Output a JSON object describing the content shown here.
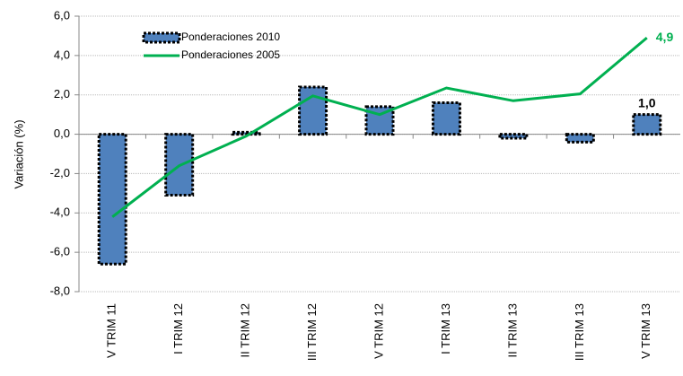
{
  "chart_data": {
    "type": "bar_line",
    "y_label": "Variación (%)",
    "categories": [
      "V TRIM 11",
      "I TRIM 12",
      "II TRIM 12",
      "III TRIM 12",
      "V TRIM 12",
      "I TRIM 13",
      "II TRIM 13",
      "III TRIM 13",
      "V TRIM 13"
    ],
    "series": [
      {
        "name": "Ponderaciones 2010",
        "type": "bar",
        "color": "#4f81bd",
        "values": [
          -6.6,
          -3.1,
          0.1,
          2.4,
          1.4,
          1.6,
          -0.2,
          -0.4,
          1.0
        ],
        "value_labels": [
          null,
          null,
          null,
          null,
          null,
          null,
          null,
          null,
          "1,0"
        ]
      },
      {
        "name": "Ponderaciones 2005",
        "type": "line",
        "color": "#00b050",
        "values": [
          -4.2,
          -1.6,
          -0.1,
          1.95,
          1.0,
          2.35,
          1.7,
          2.05,
          4.9
        ],
        "value_labels": [
          null,
          null,
          null,
          null,
          null,
          null,
          null,
          null,
          "4,9"
        ]
      }
    ],
    "ylim": [
      -8,
      6
    ],
    "yticks": [
      {
        "value": -8,
        "label": "-8,0"
      },
      {
        "value": -6,
        "label": "-6,0"
      },
      {
        "value": -4,
        "label": "-4,0"
      },
      {
        "value": -2,
        "label": "-2,0"
      },
      {
        "value": 0,
        "label": "0,0"
      },
      {
        "value": 2,
        "label": "2,0"
      },
      {
        "value": 4,
        "label": "4,0"
      },
      {
        "value": 6,
        "label": "6,0"
      }
    ],
    "grid": true,
    "legend": "upper left"
  }
}
